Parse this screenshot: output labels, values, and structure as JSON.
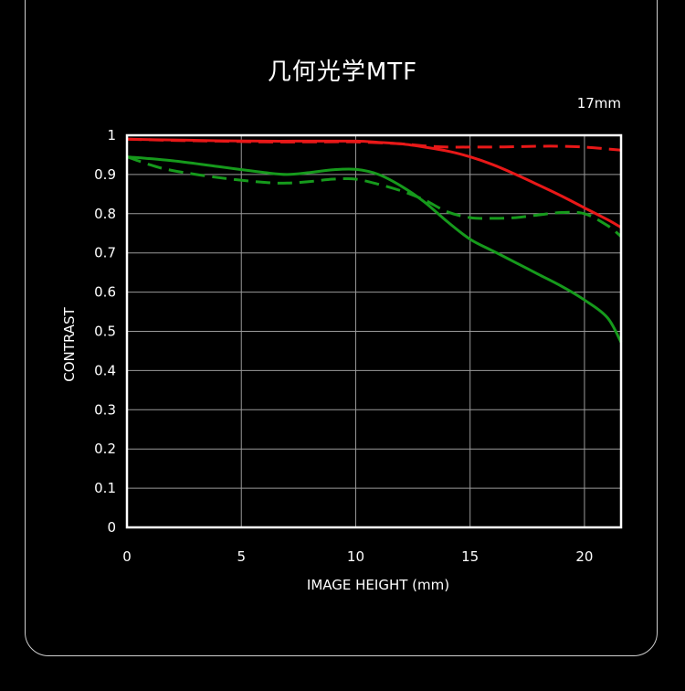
{
  "chart_data": {
    "type": "line",
    "title": "几何光学MTF",
    "subtitle": "17mm",
    "xlabel": "IMAGE HEIGHT (mm)",
    "ylabel": "CONTRAST",
    "xlim": [
      0,
      21.6
    ],
    "ylim": [
      0,
      1
    ],
    "x_ticks": [
      "0",
      "5",
      "10",
      "15",
      "20"
    ],
    "y_ticks": [
      "0",
      "0.1",
      "0.2",
      "0.3",
      "0.4",
      "0.5",
      "0.6",
      "0.7",
      "0.8",
      "0.9",
      "1"
    ],
    "grid": true,
    "series": [
      {
        "color": "#e81818",
        "dash": "solid",
        "points": [
          [
            0,
            0.99
          ],
          [
            2,
            0.988
          ],
          [
            4,
            0.986
          ],
          [
            6,
            0.985
          ],
          [
            8,
            0.985
          ],
          [
            10,
            0.985
          ],
          [
            11,
            0.982
          ],
          [
            12,
            0.978
          ],
          [
            13,
            0.97
          ],
          [
            14,
            0.96
          ],
          [
            15,
            0.945
          ],
          [
            16,
            0.925
          ],
          [
            17,
            0.9
          ],
          [
            18,
            0.873
          ],
          [
            19,
            0.845
          ],
          [
            20,
            0.815
          ],
          [
            21,
            0.785
          ],
          [
            21.6,
            0.765
          ]
        ]
      },
      {
        "color": "#e81818",
        "dash": "dashed",
        "points": [
          [
            0,
            0.99
          ],
          [
            2,
            0.987
          ],
          [
            4,
            0.985
          ],
          [
            6,
            0.983
          ],
          [
            8,
            0.983
          ],
          [
            10,
            0.983
          ],
          [
            12,
            0.978
          ],
          [
            13,
            0.973
          ],
          [
            14,
            0.97
          ],
          [
            15,
            0.97
          ],
          [
            16,
            0.97
          ],
          [
            17,
            0.971
          ],
          [
            18,
            0.972
          ],
          [
            19,
            0.972
          ],
          [
            20,
            0.97
          ],
          [
            21,
            0.965
          ],
          [
            21.6,
            0.962
          ]
        ]
      },
      {
        "color": "#169a1c",
        "dash": "solid",
        "points": [
          [
            0,
            0.945
          ],
          [
            2,
            0.935
          ],
          [
            4,
            0.92
          ],
          [
            6,
            0.905
          ],
          [
            7,
            0.9
          ],
          [
            8,
            0.905
          ],
          [
            9,
            0.912
          ],
          [
            10,
            0.913
          ],
          [
            11,
            0.9
          ],
          [
            12,
            0.87
          ],
          [
            13,
            0.83
          ],
          [
            14,
            0.78
          ],
          [
            15,
            0.735
          ],
          [
            16,
            0.705
          ],
          [
            17,
            0.675
          ],
          [
            18,
            0.645
          ],
          [
            19,
            0.615
          ],
          [
            20,
            0.58
          ],
          [
            21,
            0.535
          ],
          [
            21.6,
            0.472
          ]
        ]
      },
      {
        "color": "#169a1c",
        "dash": "dashed",
        "points": [
          [
            0,
            0.945
          ],
          [
            1,
            0.925
          ],
          [
            2,
            0.91
          ],
          [
            4,
            0.892
          ],
          [
            6,
            0.88
          ],
          [
            7,
            0.878
          ],
          [
            8,
            0.882
          ],
          [
            9,
            0.888
          ],
          [
            10,
            0.888
          ],
          [
            11,
            0.875
          ],
          [
            12,
            0.858
          ],
          [
            13,
            0.835
          ],
          [
            14,
            0.805
          ],
          [
            15,
            0.79
          ],
          [
            16,
            0.788
          ],
          [
            17,
            0.79
          ],
          [
            18,
            0.797
          ],
          [
            19,
            0.803
          ],
          [
            20,
            0.8
          ],
          [
            21,
            0.77
          ],
          [
            21.6,
            0.742
          ]
        ]
      }
    ]
  }
}
